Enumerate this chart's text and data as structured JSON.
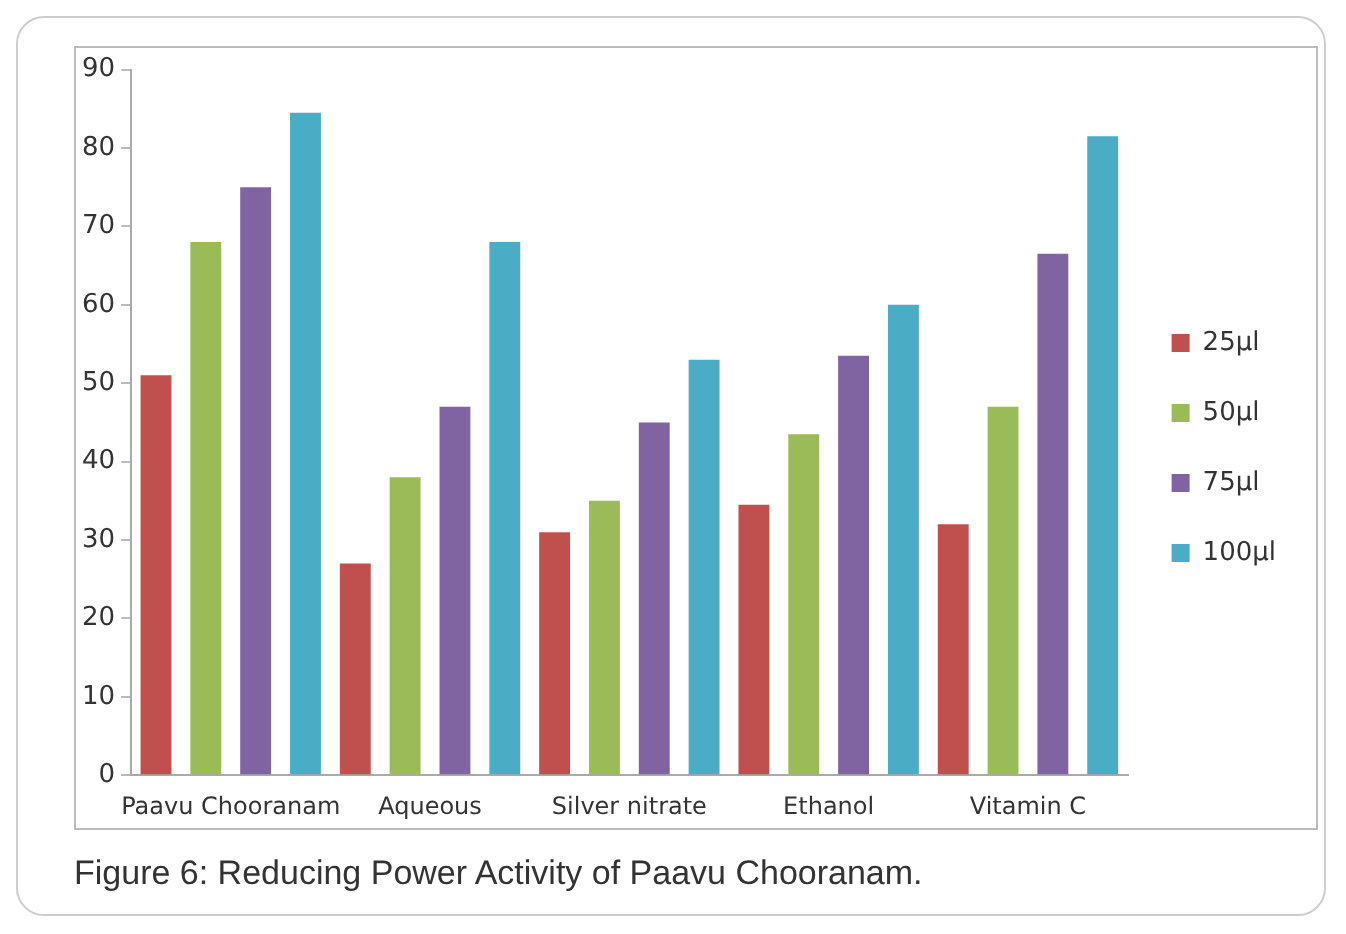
{
  "chart_data": {
    "type": "bar",
    "title": "Figure 6: Reducing Power Activity of Paavu Chooranam.",
    "categories": [
      "Paavu Chooranam",
      "Aqueous",
      "Silver nitrate",
      "Ethanol",
      "Vitamin C"
    ],
    "series": [
      {
        "name": "25µl",
        "color": "#c0504d",
        "values": [
          51,
          27,
          31,
          34.5,
          32
        ]
      },
      {
        "name": "50µl",
        "color": "#9bbb59",
        "values": [
          68,
          38,
          35,
          43.5,
          47
        ]
      },
      {
        "name": "75µl",
        "color": "#8064a2",
        "values": [
          75,
          47,
          45,
          53.5,
          66.5
        ]
      },
      {
        "name": "100µl",
        "color": "#4bacc6",
        "values": [
          84.5,
          68,
          53,
          60,
          81.5
        ]
      }
    ],
    "ylim": [
      0,
      90
    ],
    "yticks": [
      0,
      10,
      20,
      30,
      40,
      50,
      60,
      70,
      80,
      90
    ],
    "grid": false,
    "legend": "right"
  }
}
